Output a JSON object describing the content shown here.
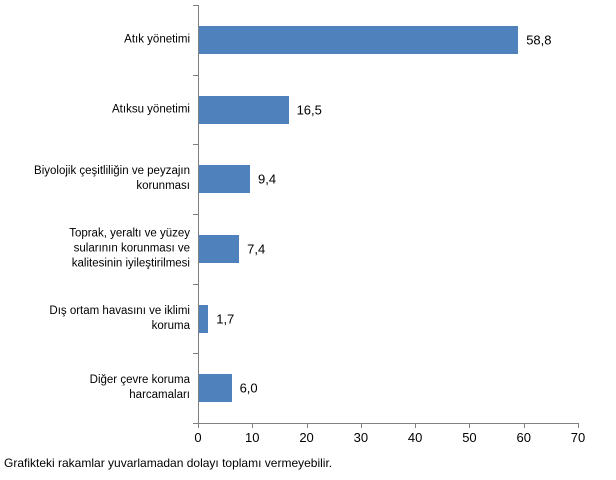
{
  "footer": {
    "note": "Grafikteki rakamlar yuvarlamadan dolayı toplamı vermeyebilir."
  },
  "chart_data": {
    "type": "bar",
    "orientation": "horizontal",
    "title": "",
    "xlabel": "",
    "ylabel": "",
    "categories": [
      "Atık yönetimi",
      "Atıksu yönetimi",
      "Biyolojik çeşitliliğin ve peyzajın\nkorunması",
      "Toprak, yeraltı ve yüzey\nsularının korunması ve\nkalitesinin iyileştirilmesi",
      "Dış ortam havasını ve iklimi\nkoruma",
      "Diğer çevre koruma\nharcamaları"
    ],
    "values": [
      58.8,
      16.5,
      9.4,
      7.4,
      1.7,
      6.0
    ],
    "value_labels": [
      "58,8",
      "16,5",
      "9,4",
      "7,4",
      "1,7",
      "6,0"
    ],
    "xlim": [
      0,
      70
    ],
    "xticks": [
      0,
      10,
      20,
      30,
      40,
      50,
      60,
      70
    ],
    "xtick_labels": [
      "0",
      "10",
      "20",
      "30",
      "40",
      "50",
      "60",
      "70"
    ],
    "bar_color": "#4F81BD",
    "axis_color": "#808080",
    "grid": false,
    "legend": false
  }
}
